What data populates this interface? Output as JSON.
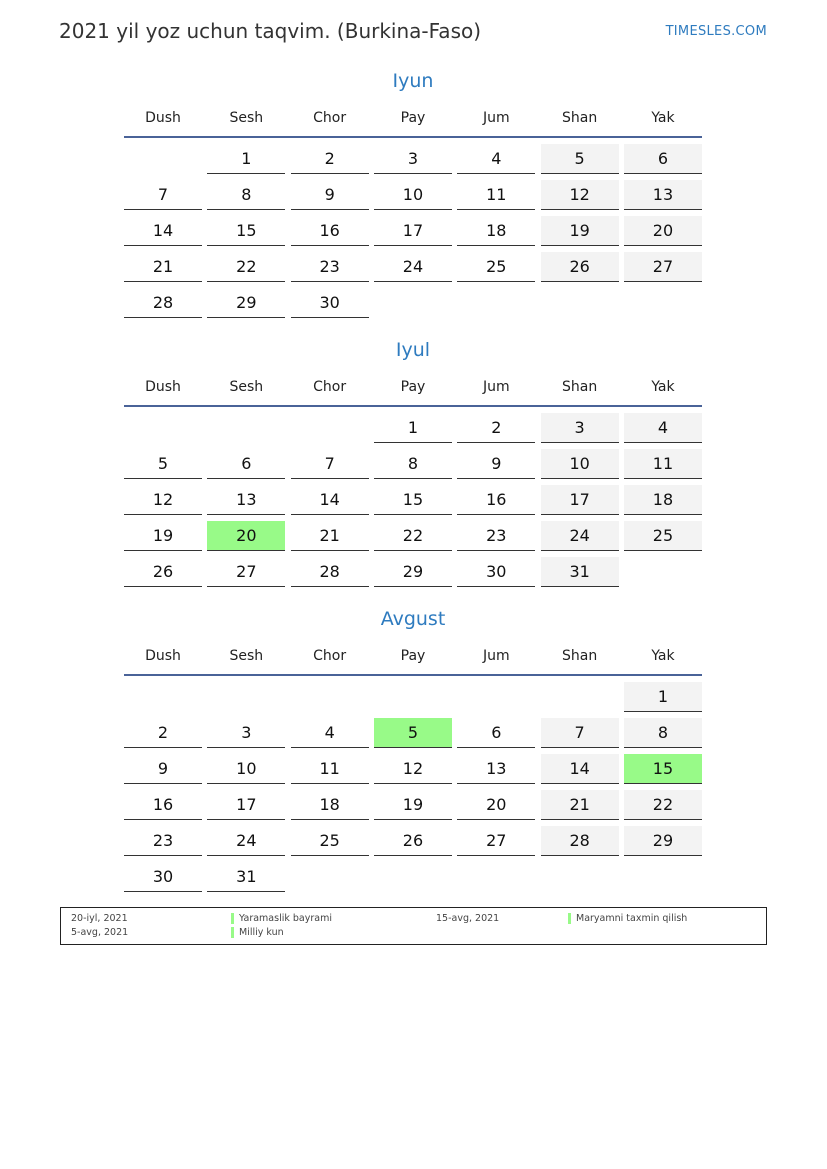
{
  "header": {
    "title": "2021 yil yoz uchun taqvim. (Burkina-Faso)",
    "brand": "TIMESLES.COM"
  },
  "weekdays": [
    "Dush",
    "Sesh",
    "Chor",
    "Pay",
    "Jum",
    "Shan",
    "Yak"
  ],
  "colors": {
    "accent": "#2e7bbf",
    "holiday": "#98fa88",
    "weekend": "#f3f3f3",
    "rule": "#4a6398"
  },
  "months": [
    {
      "name": "Iyun",
      "first_weekday": 1,
      "days": 30,
      "holidays": []
    },
    {
      "name": "Iyul",
      "first_weekday": 3,
      "days": 31,
      "holidays": [
        20
      ]
    },
    {
      "name": "Avgust",
      "first_weekday": 6,
      "days": 31,
      "holidays": [
        5,
        15
      ]
    }
  ],
  "legend": [
    {
      "date": "20-iyl, 2021",
      "name": "Yaramaslik bayrami"
    },
    {
      "date": "5-avg, 2021",
      "name": "Milliy kun"
    },
    {
      "date": "15-avg, 2021",
      "name": "Maryamni taxmin qilish"
    }
  ]
}
